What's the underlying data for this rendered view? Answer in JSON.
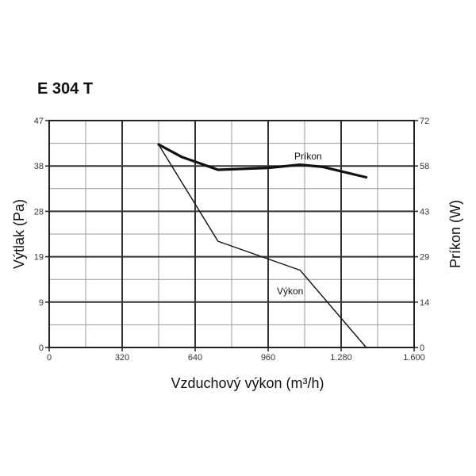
{
  "chart_data": {
    "type": "line",
    "title": "E 304 T",
    "xlabel": "Vzduchový výkon (m³/h)",
    "ylabel": "Výtlak (Pa)",
    "y2label": "Príkon (W)",
    "xlim": [
      0,
      1600
    ],
    "ylim": [
      0,
      47
    ],
    "y2lim": [
      0,
      72
    ],
    "x_ticks": [
      "0",
      "320",
      "640",
      "960",
      "1.280",
      "1.600"
    ],
    "y_ticks": [
      "0",
      "9",
      "19",
      "28",
      "38",
      "47"
    ],
    "y2_ticks": [
      "0",
      "14",
      "29",
      "43",
      "58",
      "72"
    ],
    "grid": true,
    "series": [
      {
        "name": "Výkon",
        "axis": "left",
        "x": [
          480,
          740,
          1100,
          1390
        ],
        "y": [
          42,
          22,
          16,
          0
        ]
      },
      {
        "name": "Príkon",
        "axis": "right",
        "x": [
          480,
          580,
          740,
          960,
          1100,
          1200,
          1390
        ],
        "y": [
          64.4,
          60.5,
          56.4,
          57.0,
          58.0,
          57.3,
          54.0
        ]
      }
    ]
  }
}
